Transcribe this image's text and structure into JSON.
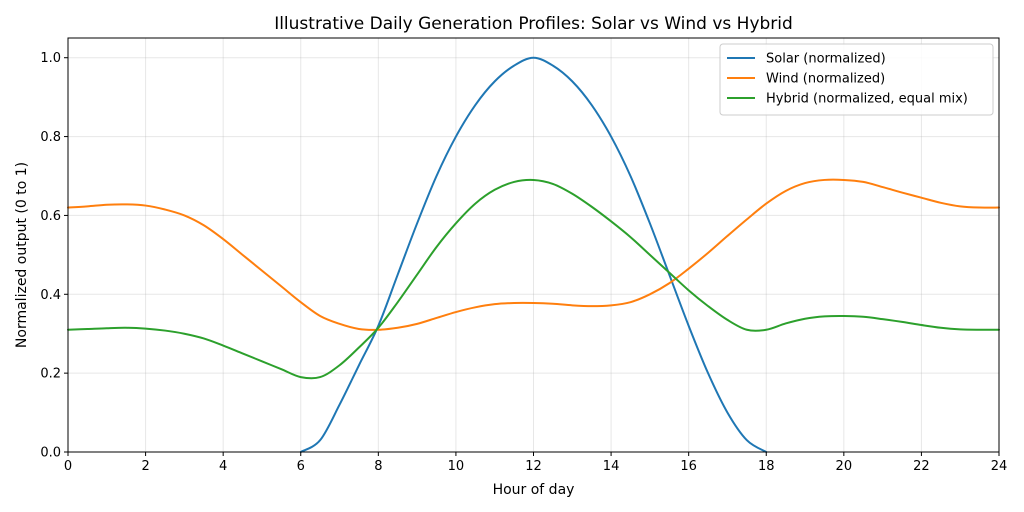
{
  "chart_data": {
    "type": "line",
    "title": "Illustrative Daily Generation Profiles: Solar vs Wind vs Hybrid",
    "xlabel": "Hour of day",
    "ylabel": "Normalized output (0 to 1)",
    "xlim": [
      0,
      24
    ],
    "ylim": [
      0,
      1.05
    ],
    "xticks": [
      0,
      2,
      4,
      6,
      8,
      10,
      12,
      14,
      16,
      18,
      20,
      22,
      24
    ],
    "xtick_labels": [
      "0",
      "2",
      "4",
      "6",
      "8",
      "10",
      "12",
      "14",
      "16",
      "18",
      "20",
      "22",
      "24"
    ],
    "yticks": [
      0,
      0.2,
      0.4,
      0.6,
      0.8,
      1.0
    ],
    "ytick_labels": [
      "0.0",
      "0.2",
      "0.4",
      "0.6",
      "0.8",
      "1.0"
    ],
    "grid": true,
    "legend_position": "top-right",
    "series": [
      {
        "name": "Solar (normalized)",
        "color": "#1f77b4",
        "x": [
          6,
          6.5,
          7,
          7.5,
          8,
          8.5,
          9,
          9.5,
          10,
          10.5,
          11,
          11.5,
          12,
          12.5,
          13,
          13.5,
          14,
          14.5,
          15,
          15.5,
          16,
          16.5,
          17,
          17.5,
          18
        ],
        "y": [
          0,
          0.03,
          0.12,
          0.22,
          0.32,
          0.45,
          0.58,
          0.7,
          0.8,
          0.88,
          0.94,
          0.98,
          1.0,
          0.98,
          0.94,
          0.88,
          0.8,
          0.7,
          0.58,
          0.45,
          0.32,
          0.2,
          0.1,
          0.03,
          0
        ]
      },
      {
        "name": "Wind (normalized)",
        "color": "#ff7f0e",
        "x": [
          0,
          0.5,
          1,
          1.5,
          2,
          2.5,
          3,
          3.5,
          4,
          4.5,
          5,
          5.5,
          6,
          6.5,
          7,
          7.5,
          8,
          8.5,
          9,
          9.5,
          10,
          10.5,
          11,
          11.5,
          12,
          12.5,
          13,
          13.5,
          14,
          14.5,
          15,
          15.5,
          16,
          16.5,
          17,
          17.5,
          18,
          18.5,
          19,
          19.5,
          20,
          20.5,
          21,
          21.5,
          22,
          22.5,
          23,
          23.5,
          24
        ],
        "y": [
          0.62,
          0.623,
          0.627,
          0.628,
          0.625,
          0.615,
          0.6,
          0.575,
          0.54,
          0.5,
          0.46,
          0.42,
          0.38,
          0.345,
          0.325,
          0.312,
          0.31,
          0.315,
          0.325,
          0.34,
          0.355,
          0.367,
          0.375,
          0.378,
          0.378,
          0.376,
          0.372,
          0.37,
          0.372,
          0.38,
          0.4,
          0.428,
          0.465,
          0.505,
          0.548,
          0.59,
          0.63,
          0.662,
          0.682,
          0.69,
          0.69,
          0.685,
          0.672,
          0.658,
          0.645,
          0.632,
          0.623,
          0.62,
          0.62
        ]
      },
      {
        "name": "Hybrid (normalized, equal mix)",
        "color": "#2ca02c",
        "x": [
          0,
          0.5,
          1,
          1.5,
          2,
          2.5,
          3,
          3.5,
          4,
          4.5,
          5,
          5.5,
          6,
          6.5,
          7,
          7.5,
          8,
          8.5,
          9,
          9.5,
          10,
          10.5,
          11,
          11.5,
          12,
          12.5,
          13,
          13.5,
          14,
          14.5,
          15,
          15.5,
          16,
          16.5,
          17,
          17.5,
          18,
          18.5,
          19,
          19.5,
          20,
          20.5,
          21,
          21.5,
          22,
          22.5,
          23,
          23.5,
          24
        ],
        "y": [
          0.31,
          0.312,
          0.314,
          0.315,
          0.313,
          0.308,
          0.3,
          0.288,
          0.27,
          0.25,
          0.23,
          0.21,
          0.19,
          0.19,
          0.22,
          0.265,
          0.315,
          0.38,
          0.45,
          0.52,
          0.58,
          0.63,
          0.665,
          0.685,
          0.69,
          0.68,
          0.655,
          0.622,
          0.585,
          0.545,
          0.5,
          0.455,
          0.41,
          0.37,
          0.335,
          0.31,
          0.31,
          0.326,
          0.338,
          0.344,
          0.345,
          0.343,
          0.337,
          0.33,
          0.322,
          0.315,
          0.311,
          0.31,
          0.31
        ]
      }
    ]
  }
}
